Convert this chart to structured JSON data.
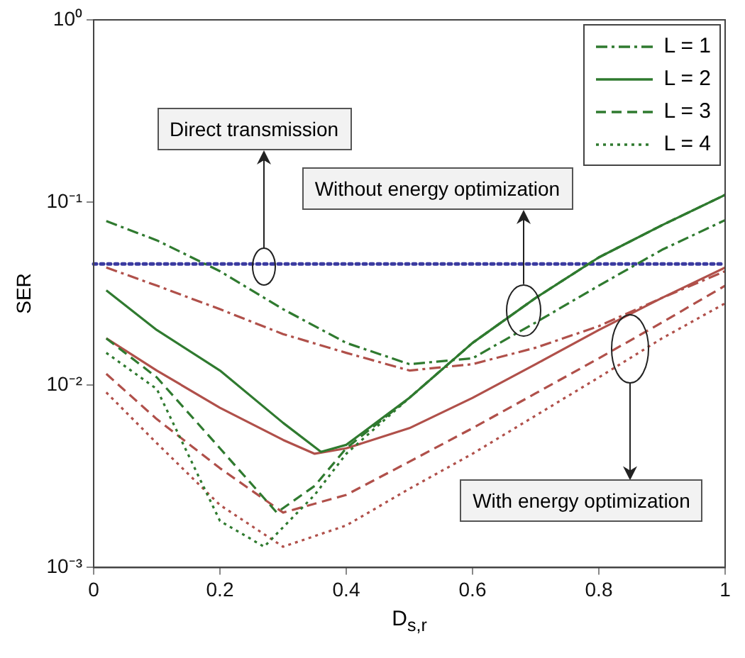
{
  "chart_data": {
    "type": "line",
    "xlabel": "D$_{s,r}$",
    "ylabel": "SER",
    "log": "y",
    "grid": false,
    "legend": "top right",
    "marker": "none",
    "xlim": [
      0,
      1
    ],
    "xticks": [
      0,
      0.2,
      0.4,
      0.6,
      0.8,
      {
        "value": 1,
        "label": "1"
      }
    ],
    "ylim": [
      0.001,
      1
    ],
    "yticks": [
      {
        "value": 0.001,
        "label": "10⁻³"
      },
      {
        "value": 0.01,
        "label": "10⁻²"
      },
      {
        "value": 0.1,
        "label": "10⁻¹"
      },
      {
        "value": 1,
        "label": "10⁰"
      }
    ],
    "series": [
      {
        "name": "L = 1",
        "color": "#2f7a2f",
        "line_style": "dashdot",
        "x": [
          0.02,
          0.1,
          0.2,
          0.3,
          0.4,
          0.5,
          0.6,
          0.7,
          0.8,
          0.9,
          1.0
        ],
        "values": [
          0.079,
          0.062,
          0.042,
          0.026,
          0.017,
          0.013,
          0.014,
          0.022,
          0.035,
          0.055,
          0.08
        ]
      },
      {
        "name": "L = 2",
        "color": "#2f7a2f",
        "line_style": "solid",
        "x": [
          0.02,
          0.1,
          0.2,
          0.3,
          0.36,
          0.4,
          0.5,
          0.6,
          0.7,
          0.8,
          0.9,
          1.0
        ],
        "values": [
          0.033,
          0.02,
          0.012,
          0.0062,
          0.0043,
          0.0047,
          0.0085,
          0.017,
          0.03,
          0.05,
          0.075,
          0.11
        ]
      },
      {
        "name": "L = 3",
        "color": "#2f7a2f",
        "line_style": "dashed",
        "x": [
          0.02,
          0.1,
          0.2,
          0.29,
          0.35,
          0.4,
          0.5,
          0.6,
          0.7,
          0.8,
          0.9,
          1.0
        ],
        "values": [
          0.018,
          0.011,
          0.0045,
          0.002,
          0.0028,
          0.0045,
          0.0085,
          0.017,
          0.03,
          0.05,
          0.075,
          0.11
        ]
      },
      {
        "name": "L = 4",
        "color": "#2f7a2f",
        "line_style": "dotted",
        "x": [
          0.02,
          0.1,
          0.2,
          0.27,
          0.35,
          0.4,
          0.5,
          0.6,
          0.7,
          0.8,
          0.9,
          1.0
        ],
        "values": [
          0.015,
          0.0095,
          0.0018,
          0.0013,
          0.0025,
          0.0042,
          0.0085,
          0.017,
          0.03,
          0.05,
          0.075,
          0.11
        ]
      },
      {
        "color": "#b0504a",
        "line_style": "dashdot",
        "x": [
          0.02,
          0.1,
          0.2,
          0.3,
          0.4,
          0.5,
          0.6,
          0.7,
          0.8,
          0.9,
          1.0
        ],
        "values": [
          0.044,
          0.035,
          0.026,
          0.019,
          0.015,
          0.012,
          0.013,
          0.016,
          0.021,
          0.03,
          0.042
        ]
      },
      {
        "color": "#b0504a",
        "line_style": "solid",
        "x": [
          0.02,
          0.1,
          0.2,
          0.3,
          0.35,
          0.4,
          0.5,
          0.6,
          0.7,
          0.8,
          0.9,
          1.0
        ],
        "values": [
          0.018,
          0.012,
          0.0075,
          0.005,
          0.0042,
          0.0045,
          0.0058,
          0.0085,
          0.013,
          0.02,
          0.03,
          0.044
        ]
      },
      {
        "color": "#b0504a",
        "line_style": "dashed",
        "x": [
          0.02,
          0.1,
          0.2,
          0.3,
          0.4,
          0.5,
          0.6,
          0.7,
          0.8,
          0.9,
          1.0
        ],
        "values": [
          0.0115,
          0.0065,
          0.0035,
          0.002,
          0.0025,
          0.0038,
          0.0058,
          0.009,
          0.014,
          0.022,
          0.035
        ]
      },
      {
        "color": "#b0504a",
        "line_style": "dotted",
        "x": [
          0.02,
          0.1,
          0.2,
          0.3,
          0.4,
          0.5,
          0.6,
          0.7,
          0.8,
          0.9,
          1.0
        ],
        "values": [
          0.0091,
          0.0048,
          0.0022,
          0.0013,
          0.0017,
          0.0027,
          0.0042,
          0.0068,
          0.011,
          0.018,
          0.028
        ]
      }
    ],
    "ref_lines": [
      {
        "axis": "y",
        "value": 0.046,
        "color": "#3a3aa0",
        "line_style": "dotted"
      }
    ],
    "annotations": [
      "Direct transmission",
      "Without energy optimization",
      "With energy optimization"
    ]
  }
}
